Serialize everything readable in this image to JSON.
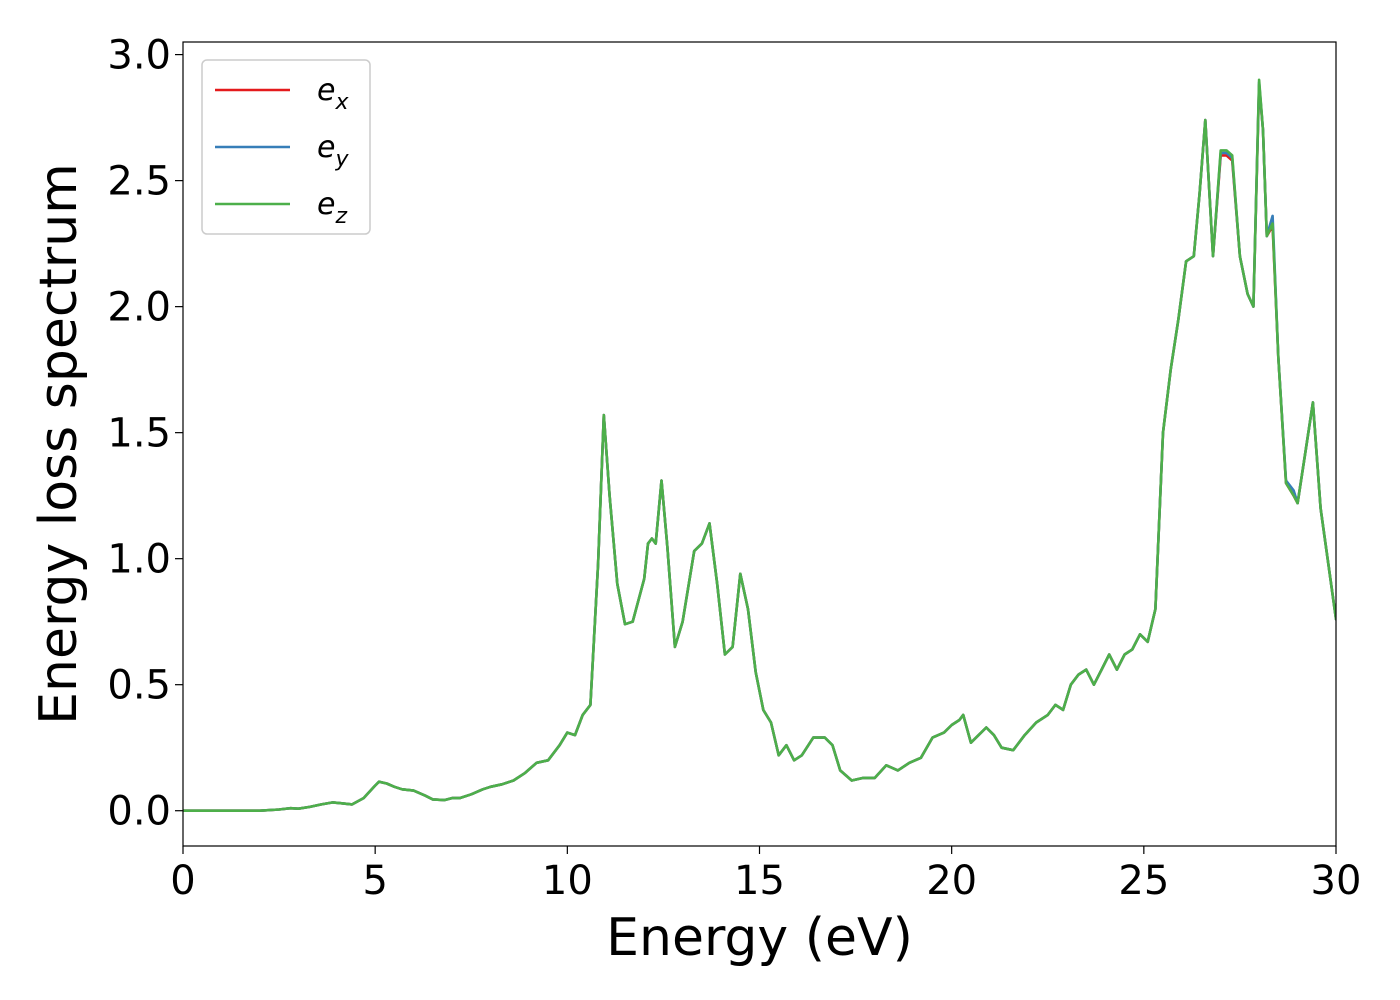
{
  "chart_data": {
    "type": "line",
    "title": "",
    "xlabel": "Energy (eV)",
    "ylabel": "Energy loss spectrum",
    "xlim": [
      0,
      30
    ],
    "ylim": [
      -0.14,
      3.05
    ],
    "xticks": [
      0,
      5,
      10,
      15,
      20,
      25,
      30
    ],
    "xtick_labels": [
      "0",
      "5",
      "10",
      "15",
      "20",
      "25",
      "30"
    ],
    "yticks": [
      0.0,
      0.5,
      1.0,
      1.5,
      2.0,
      2.5,
      3.0
    ],
    "ytick_labels": [
      "0.0",
      "0.5",
      "1.0",
      "1.5",
      "2.0",
      "2.5",
      "3.0"
    ],
    "grid": false,
    "legend_position": "top-left",
    "colors": {
      "e_x": "#e41a1c",
      "e_y": "#377eb8",
      "e_z": "#4daf4a"
    },
    "legend": [
      {
        "base": "e",
        "sub": "x",
        "color": "#e41a1c"
      },
      {
        "base": "e",
        "sub": "y",
        "color": "#377eb8"
      },
      {
        "base": "e",
        "sub": "z",
        "color": "#4daf4a"
      }
    ],
    "x": [
      0,
      1,
      2,
      2.5,
      2.8,
      3.0,
      3.3,
      3.6,
      3.9,
      4.1,
      4.4,
      4.7,
      5.0,
      5.1,
      5.3,
      5.5,
      5.7,
      6.0,
      6.3,
      6.5,
      6.8,
      7.0,
      7.2,
      7.5,
      7.8,
      8.0,
      8.3,
      8.6,
      8.9,
      9.2,
      9.5,
      9.8,
      10.0,
      10.2,
      10.4,
      10.6,
      10.8,
      10.95,
      11.1,
      11.3,
      11.5,
      11.7,
      12.0,
      12.1,
      12.2,
      12.3,
      12.45,
      12.6,
      12.8,
      13.0,
      13.3,
      13.5,
      13.7,
      13.9,
      14.1,
      14.3,
      14.5,
      14.7,
      14.9,
      15.1,
      15.3,
      15.5,
      15.7,
      15.9,
      16.1,
      16.4,
      16.7,
      16.9,
      17.1,
      17.4,
      17.7,
      18.0,
      18.3,
      18.6,
      18.9,
      19.2,
      19.5,
      19.8,
      20.0,
      20.2,
      20.3,
      20.5,
      20.7,
      20.9,
      21.1,
      21.3,
      21.6,
      21.9,
      22.2,
      22.5,
      22.7,
      22.9,
      23.1,
      23.3,
      23.5,
      23.7,
      23.9,
      24.1,
      24.3,
      24.5,
      24.7,
      24.9,
      25.1,
      25.3,
      25.5,
      25.7,
      25.9,
      26.1,
      26.3,
      26.45,
      26.6,
      26.8,
      27.0,
      27.15,
      27.3,
      27.5,
      27.7,
      27.85,
      28.0,
      28.1,
      28.2,
      28.35,
      28.5,
      28.7,
      28.9,
      29.0,
      29.2,
      29.4,
      29.6,
      29.8,
      30.0
    ],
    "series": [
      {
        "name": "e_x",
        "values": [
          0.0,
          0.0,
          0.0,
          0.005,
          0.01,
          0.008,
          0.015,
          0.025,
          0.033,
          0.03,
          0.025,
          0.05,
          0.1,
          0.115,
          0.108,
          0.095,
          0.085,
          0.08,
          0.06,
          0.045,
          0.042,
          0.05,
          0.05,
          0.065,
          0.085,
          0.095,
          0.105,
          0.12,
          0.15,
          0.19,
          0.2,
          0.26,
          0.31,
          0.3,
          0.38,
          0.42,
          0.98,
          1.57,
          1.25,
          0.9,
          0.74,
          0.75,
          0.92,
          1.06,
          1.08,
          1.06,
          1.31,
          1.05,
          0.65,
          0.75,
          1.03,
          1.06,
          1.14,
          0.9,
          0.62,
          0.65,
          0.94,
          0.8,
          0.55,
          0.4,
          0.35,
          0.22,
          0.26,
          0.2,
          0.22,
          0.29,
          0.29,
          0.26,
          0.16,
          0.12,
          0.13,
          0.13,
          0.18,
          0.16,
          0.19,
          0.21,
          0.29,
          0.31,
          0.34,
          0.36,
          0.38,
          0.27,
          0.3,
          0.33,
          0.3,
          0.25,
          0.24,
          0.3,
          0.35,
          0.38,
          0.42,
          0.4,
          0.5,
          0.54,
          0.56,
          0.5,
          0.56,
          0.62,
          0.56,
          0.62,
          0.64,
          0.7,
          0.67,
          0.8,
          1.5,
          1.75,
          1.95,
          2.18,
          2.2,
          2.45,
          2.74,
          2.2,
          2.6,
          2.6,
          2.58,
          2.2,
          2.05,
          2.0,
          2.88,
          2.7,
          2.28,
          2.32,
          1.8,
          1.3,
          1.25,
          1.22,
          1.42,
          1.62,
          1.2,
          0.98,
          0.76
        ]
      },
      {
        "name": "e_y",
        "values": [
          0.0,
          0.0,
          0.0,
          0.005,
          0.01,
          0.008,
          0.015,
          0.025,
          0.033,
          0.03,
          0.025,
          0.05,
          0.1,
          0.115,
          0.108,
          0.095,
          0.085,
          0.08,
          0.06,
          0.045,
          0.042,
          0.05,
          0.05,
          0.065,
          0.085,
          0.095,
          0.105,
          0.12,
          0.15,
          0.19,
          0.2,
          0.26,
          0.31,
          0.3,
          0.38,
          0.42,
          0.98,
          1.57,
          1.25,
          0.9,
          0.74,
          0.75,
          0.92,
          1.06,
          1.08,
          1.06,
          1.31,
          1.05,
          0.65,
          0.75,
          1.03,
          1.06,
          1.14,
          0.9,
          0.62,
          0.65,
          0.94,
          0.8,
          0.55,
          0.4,
          0.35,
          0.22,
          0.26,
          0.2,
          0.22,
          0.29,
          0.29,
          0.26,
          0.16,
          0.12,
          0.13,
          0.13,
          0.18,
          0.16,
          0.19,
          0.21,
          0.29,
          0.31,
          0.34,
          0.36,
          0.38,
          0.27,
          0.3,
          0.33,
          0.3,
          0.25,
          0.24,
          0.3,
          0.35,
          0.38,
          0.42,
          0.4,
          0.5,
          0.54,
          0.56,
          0.5,
          0.56,
          0.62,
          0.56,
          0.62,
          0.64,
          0.7,
          0.67,
          0.8,
          1.5,
          1.75,
          1.95,
          2.18,
          2.2,
          2.45,
          2.74,
          2.2,
          2.61,
          2.61,
          2.59,
          2.2,
          2.05,
          2.0,
          2.89,
          2.7,
          2.28,
          2.36,
          1.8,
          1.31,
          1.27,
          1.22,
          1.42,
          1.62,
          1.2,
          0.98,
          0.76
        ]
      },
      {
        "name": "e_z",
        "values": [
          0.0,
          0.0,
          0.0,
          0.005,
          0.01,
          0.008,
          0.015,
          0.025,
          0.033,
          0.03,
          0.025,
          0.05,
          0.1,
          0.115,
          0.108,
          0.095,
          0.085,
          0.08,
          0.06,
          0.045,
          0.042,
          0.05,
          0.05,
          0.065,
          0.085,
          0.095,
          0.105,
          0.12,
          0.15,
          0.19,
          0.2,
          0.26,
          0.31,
          0.3,
          0.38,
          0.42,
          0.98,
          1.57,
          1.25,
          0.9,
          0.74,
          0.75,
          0.92,
          1.06,
          1.08,
          1.06,
          1.31,
          1.05,
          0.65,
          0.75,
          1.03,
          1.06,
          1.14,
          0.9,
          0.62,
          0.65,
          0.94,
          0.8,
          0.55,
          0.4,
          0.35,
          0.22,
          0.26,
          0.2,
          0.22,
          0.29,
          0.29,
          0.26,
          0.16,
          0.12,
          0.13,
          0.13,
          0.18,
          0.16,
          0.19,
          0.21,
          0.29,
          0.31,
          0.34,
          0.36,
          0.38,
          0.27,
          0.3,
          0.33,
          0.3,
          0.25,
          0.24,
          0.3,
          0.35,
          0.38,
          0.42,
          0.4,
          0.5,
          0.54,
          0.56,
          0.5,
          0.56,
          0.62,
          0.56,
          0.62,
          0.64,
          0.7,
          0.67,
          0.8,
          1.5,
          1.75,
          1.95,
          2.18,
          2.2,
          2.45,
          2.74,
          2.2,
          2.62,
          2.62,
          2.6,
          2.2,
          2.05,
          2.0,
          2.9,
          2.7,
          2.28,
          2.33,
          1.8,
          1.3,
          1.25,
          1.22,
          1.42,
          1.62,
          1.2,
          0.98,
          0.76
        ]
      }
    ]
  }
}
